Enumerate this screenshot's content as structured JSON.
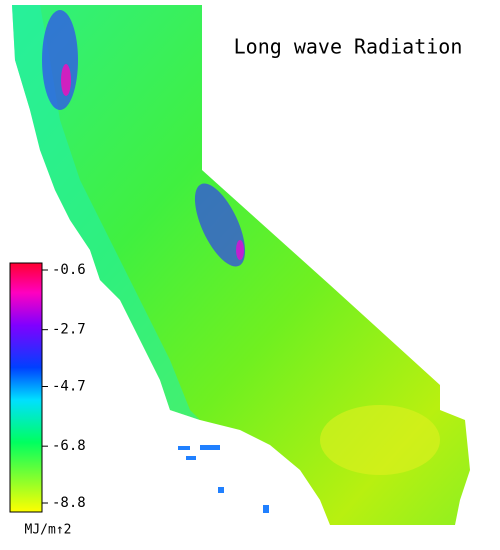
{
  "map": {
    "title": "Long wave Radiation",
    "colorbar": {
      "range": [
        -8.8,
        -0.6
      ],
      "ticks": [
        -0.6,
        -2.7,
        -4.7,
        -6.8,
        -8.8
      ],
      "unit": "MJ/m↑2"
    }
  }
}
